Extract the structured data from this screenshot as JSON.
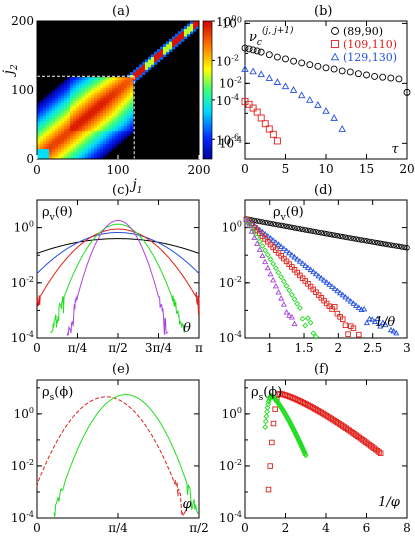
{
  "chart_data": [
    {
      "panel": "(a)",
      "type": "heatmap",
      "xlabel": "j1",
      "ylabel": "j2",
      "xlim": [
        0,
        200
      ],
      "ylim": [
        0,
        200
      ],
      "xticks": [
        "0",
        "100",
        "200"
      ],
      "yticks": [
        "0",
        "100",
        "200"
      ],
      "colorbar": {
        "scale": "log",
        "ticks": [
          "10^0",
          "10^-2",
          "10^-4",
          "10^-6"
        ],
        "range": [
          1e-07,
          1
        ]
      },
      "annotations": [
        "dashed lines at j1 = 120 and j2 = 120"
      ]
    },
    {
      "panel": "(b)",
      "type": "scatter",
      "xlabel": "τ",
      "ylabel": "ν_c^(j,j+1)",
      "xlim": [
        0,
        20
      ],
      "ylim": [
        3e-05,
        1.2
      ],
      "yscale": "log",
      "xticks": [
        "0",
        "5",
        "10",
        "15",
        "20"
      ],
      "yticks": [
        "10^-4",
        "10^-2",
        "10^0"
      ],
      "legend_position": "top-right",
      "series": [
        {
          "name": "(89,90)",
          "marker": "circle",
          "color": "#000000",
          "x": [
            0,
            0.5,
            1,
            1.5,
            2,
            3,
            4,
            5,
            6,
            7,
            8,
            9,
            10,
            11,
            12,
            13,
            14,
            15,
            16,
            17,
            18,
            19,
            20
          ],
          "y": [
            0.15,
            0.14,
            0.13,
            0.12,
            0.11,
            0.09,
            0.075,
            0.065,
            0.055,
            0.048,
            0.042,
            0.037,
            0.033,
            0.03,
            0.026,
            0.024,
            0.021,
            0.019,
            0.017,
            0.016,
            0.015,
            0.014,
            0.005
          ]
        },
        {
          "name": "(109,110)",
          "marker": "square",
          "color": "#e0201a",
          "x": [
            0,
            0.5,
            1,
            1.5,
            2,
            2.5,
            3,
            3.5,
            4
          ],
          "y": [
            0.0025,
            0.002,
            0.0015,
            0.0011,
            0.0007,
            0.00045,
            0.0003,
            0.0002,
            0.00012
          ]
        },
        {
          "name": "(129,130)",
          "marker": "triangle",
          "color": "#2050e0",
          "x": [
            0,
            1,
            2,
            3,
            4,
            5,
            6,
            7,
            8,
            9,
            10,
            11,
            12
          ],
          "y": [
            0.03,
            0.025,
            0.02,
            0.015,
            0.011,
            0.008,
            0.006,
            0.004,
            0.0028,
            0.0019,
            0.0012,
            0.0007,
            0.0003
          ]
        }
      ]
    },
    {
      "panel": "(c)",
      "type": "line",
      "xlabel": "θ",
      "ylabel": "ρ_v(θ)",
      "xlim": [
        0,
        3.1416
      ],
      "ylim": [
        0.0001,
        10
      ],
      "yscale": "log",
      "xticks": [
        "0",
        "π/4",
        "π/2",
        "3π/4",
        "π"
      ],
      "yticks": [
        "10^-4",
        "10^-2",
        "10^0"
      ],
      "series": [
        {
          "color": "#000000",
          "width": 1.0
        },
        {
          "color": "#2050e0",
          "width": 0.6
        },
        {
          "color": "#e0201a",
          "width": 0.45
        },
        {
          "color": "#22dd22",
          "width": 0.3
        },
        {
          "color": "#aa44dd",
          "width": 0.22
        }
      ]
    },
    {
      "panel": "(d)",
      "type": "scatter",
      "xlabel": "1/θ",
      "ylabel": "ρ_v(θ)",
      "xlim": [
        0.64,
        3.0
      ],
      "ylim": [
        0.0001,
        10
      ],
      "yscale": "log",
      "xticks": [
        "1",
        "1.5",
        "2",
        "2.5",
        "3"
      ],
      "yticks": [
        "10^-4",
        "10^-2",
        "10^0"
      ],
      "series": [
        {
          "color": "#000000",
          "marker": "circle",
          "decay": 1.1,
          "plateau": 0.06
        },
        {
          "color": "#2050e0",
          "marker": "triangle",
          "decay": 4.5,
          "plateau": 0
        },
        {
          "color": "#e0201a",
          "marker": "square",
          "decay": 6.0,
          "plateau": 0
        },
        {
          "color": "#22dd22",
          "marker": "diamond",
          "decay": 9.5,
          "plateau": 0
        },
        {
          "color": "#aa44dd",
          "marker": "triangle",
          "decay": 13.0,
          "plateau": 0
        }
      ]
    },
    {
      "panel": "(e)",
      "type": "line",
      "xlabel": "φ",
      "ylabel": "ρ_s(φ)",
      "xlim": [
        0,
        1.5708
      ],
      "ylim": [
        0.0001,
        20
      ],
      "yscale": "log",
      "xticks": [
        "0",
        "π/4",
        "π/2"
      ],
      "yticks": [
        "10^-4",
        "10^-2",
        "10^0"
      ],
      "series": [
        {
          "color": "#e0201a",
          "style": "dashed",
          "center": 0.67,
          "width": 0.17,
          "peak": 4.5
        },
        {
          "color": "#22dd22",
          "style": "solid",
          "center": 0.86,
          "width": 0.15,
          "peak": 5.5
        }
      ]
    },
    {
      "panel": "(f)",
      "type": "scatter",
      "xlabel": "1/φ",
      "ylabel": "ρ_s(φ)",
      "xlim": [
        0,
        8
      ],
      "ylim": [
        0.0001,
        20
      ],
      "yscale": "log",
      "xticks": [
        "0",
        "2",
        "4",
        "6",
        "8"
      ],
      "yticks": [
        "10^-4",
        "10^-2",
        "10^0"
      ],
      "series": [
        {
          "color": "#e0201a",
          "marker": "square",
          "peak_x": 1.7,
          "peak_y": 6,
          "tail_end": 6.7
        },
        {
          "color": "#22dd22",
          "marker": "diamond",
          "peak_x": 1.3,
          "peak_y": 5,
          "tail_end": 3.0
        }
      ]
    }
  ]
}
